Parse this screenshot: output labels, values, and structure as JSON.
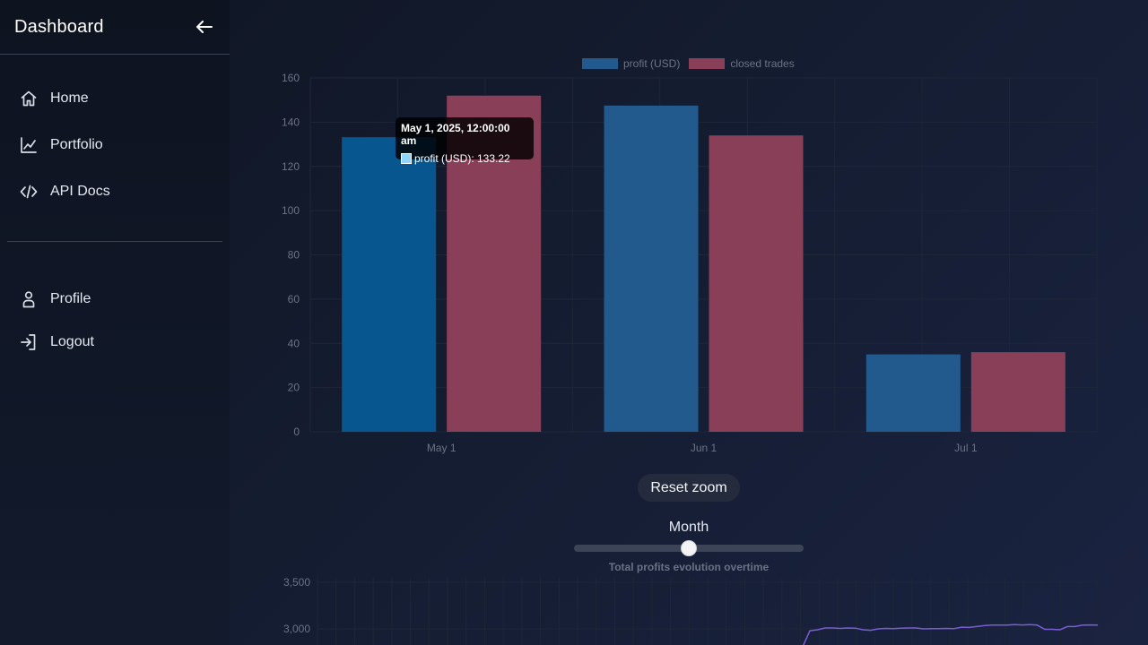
{
  "sidebar": {
    "title": "Dashboard",
    "collapse_icon": "arrow-left-icon",
    "nav_top": [
      {
        "label": "Home",
        "icon": "home-icon"
      },
      {
        "label": "Portfolio",
        "icon": "chart-line-icon"
      },
      {
        "label": "API Docs",
        "icon": "code-icon"
      }
    ],
    "nav_bottom": [
      {
        "label": "Profile",
        "icon": "user-icon"
      },
      {
        "label": "Logout",
        "icon": "logout-icon"
      }
    ]
  },
  "tooltip": {
    "title": "May 1, 2025, 12:00:00 am",
    "row": "profit (USD): 133.22"
  },
  "controls": {
    "reset_label": "Reset zoom",
    "slider_label": "Month",
    "slider_value_fraction": 0.5
  },
  "colors": {
    "profit": "#235a8d",
    "profit_active": "#07568f",
    "trades": "#8a3f58",
    "line": "#7b5cd6",
    "axis_text": "#6c7385",
    "grid": "#1e2638"
  },
  "chart_data": [
    {
      "type": "bar",
      "categories": [
        "May 1",
        "Jun 1",
        "Jul 1"
      ],
      "series": [
        {
          "name": "profit (USD)",
          "values": [
            133.22,
            147.5,
            35
          ]
        },
        {
          "name": "closed trades",
          "values": [
            152,
            134,
            36
          ]
        }
      ],
      "ylim": [
        0,
        160
      ],
      "yticks": [
        "0",
        "20",
        "40",
        "60",
        "80",
        "100",
        "120",
        "140",
        "160"
      ],
      "legend": "top-center",
      "grid": true
    },
    {
      "type": "line",
      "title": "Total profits evolution overtime",
      "yticks": [
        "3,500",
        "3,000"
      ],
      "ylim": [
        2800,
        3500
      ],
      "grid": true,
      "values": [
        null,
        null,
        null,
        null,
        null,
        null,
        null,
        null,
        null,
        null,
        null,
        null,
        null,
        null,
        null,
        null,
        null,
        null,
        null,
        null,
        null,
        null,
        null,
        null,
        null,
        null,
        null,
        null,
        null,
        null,
        null,
        null,
        null,
        null,
        null,
        null,
        null,
        null,
        null,
        null,
        null,
        null,
        null,
        null,
        null,
        null,
        null,
        null,
        null,
        null,
        null,
        null,
        null,
        null,
        null,
        null,
        null,
        null,
        null,
        null,
        null,
        null,
        null,
        null,
        2800,
        2980,
        2990,
        3010,
        3010,
        3005,
        3010,
        3008,
        2990,
        2985,
        3000,
        3005,
        3002,
        3008,
        3010,
        3010,
        3000,
        3003,
        3003,
        3005,
        3002,
        3018,
        3015,
        3025,
        3035,
        3040,
        3040,
        3040,
        3045,
        3042,
        3045,
        3040,
        2995,
        2995,
        2990,
        3025,
        3025,
        3040,
        3042,
        3040
      ]
    }
  ]
}
